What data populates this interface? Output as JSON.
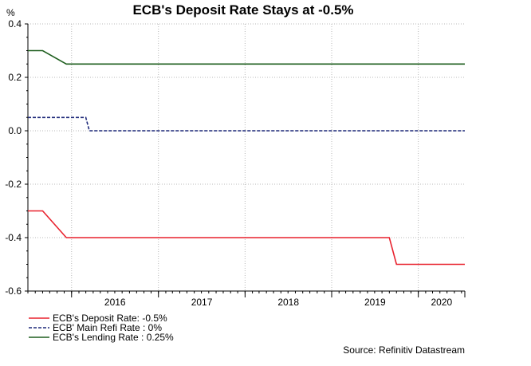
{
  "chart_data": {
    "type": "line",
    "title": "ECB's Deposit Rate Stays at -0.5%",
    "ylabel": "%",
    "xlabel": "",
    "ylim": [
      -0.6,
      0.4
    ],
    "yticks": [
      "0.4",
      "0.2",
      "0.0",
      "-0.2",
      "-0.4",
      "-0.6"
    ],
    "xlim": [
      "2015-07-01",
      "2020-07-15"
    ],
    "xticks": [
      {
        "label": "2016",
        "date": "2016-01-01"
      },
      {
        "label": "2017",
        "date": "2017-01-01"
      },
      {
        "label": "2018",
        "date": "2018-01-01"
      },
      {
        "label": "2019",
        "date": "2019-01-01"
      },
      {
        "label": "2020",
        "date": "2020-01-01"
      }
    ],
    "grid": true,
    "legend_position": "bottom-left",
    "series": [
      {
        "name": "ECB's Deposit Rate: -0.5%",
        "color": "#e8212d",
        "style": "solid",
        "points": [
          {
            "date": "2015-07-01",
            "value": -0.3
          },
          {
            "date": "2015-09-01",
            "value": -0.3
          },
          {
            "date": "2015-12-10",
            "value": -0.4
          },
          {
            "date": "2019-09-01",
            "value": -0.4
          },
          {
            "date": "2019-10-01",
            "value": -0.5
          },
          {
            "date": "2020-07-15",
            "value": -0.5
          }
        ]
      },
      {
        "name": "ECB' Main Refi Rate : 0%",
        "color": "#1f2a7a",
        "style": "dashed",
        "points": [
          {
            "date": "2015-07-01",
            "value": 0.05
          },
          {
            "date": "2016-03-01",
            "value": 0.05
          },
          {
            "date": "2016-03-16",
            "value": 0.0
          },
          {
            "date": "2020-07-15",
            "value": 0.0
          }
        ]
      },
      {
        "name": "ECB's Lending Rate : 0.25%",
        "color": "#1e5e1e",
        "style": "solid",
        "points": [
          {
            "date": "2015-07-01",
            "value": 0.3
          },
          {
            "date": "2015-09-01",
            "value": 0.3
          },
          {
            "date": "2015-12-10",
            "value": 0.25
          },
          {
            "date": "2020-07-15",
            "value": 0.25
          }
        ]
      }
    ],
    "source": "Source: Refinitiv Datastream"
  }
}
